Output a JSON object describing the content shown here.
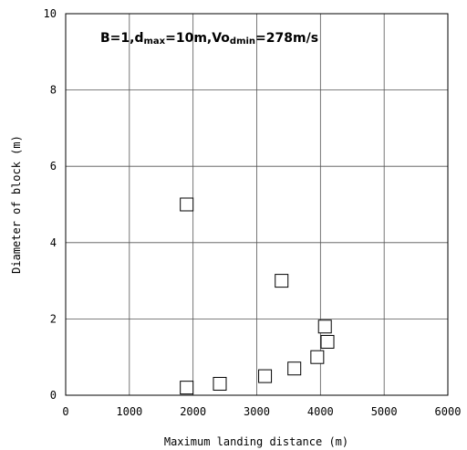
{
  "chart_data": {
    "type": "scatter",
    "title": "",
    "annotation": {
      "prefix": "B=1,d",
      "sub1": "max",
      "mid": "=10m,Vo",
      "sub2": "dmin",
      "suffix": "=278m/s"
    },
    "xlabel": "Maximum landing distance (m)",
    "ylabel": "Diameter of block (m)",
    "xlim": [
      0,
      6000
    ],
    "ylim": [
      0,
      10
    ],
    "xticks": [
      0,
      1000,
      2000,
      3000,
      4000,
      5000,
      6000
    ],
    "yticks": [
      0,
      2,
      4,
      6,
      8,
      10
    ],
    "grid": true,
    "marker": "open-square",
    "series": [
      {
        "points": [
          {
            "x": 1900,
            "y": 5.0
          },
          {
            "x": 1900,
            "y": 0.2
          },
          {
            "x": 2420,
            "y": 0.3
          },
          {
            "x": 3130,
            "y": 0.5
          },
          {
            "x": 3390,
            "y": 3.0
          },
          {
            "x": 3590,
            "y": 0.7
          },
          {
            "x": 3950,
            "y": 1.0
          },
          {
            "x": 4070,
            "y": 1.8
          },
          {
            "x": 4110,
            "y": 1.4
          }
        ]
      }
    ]
  }
}
